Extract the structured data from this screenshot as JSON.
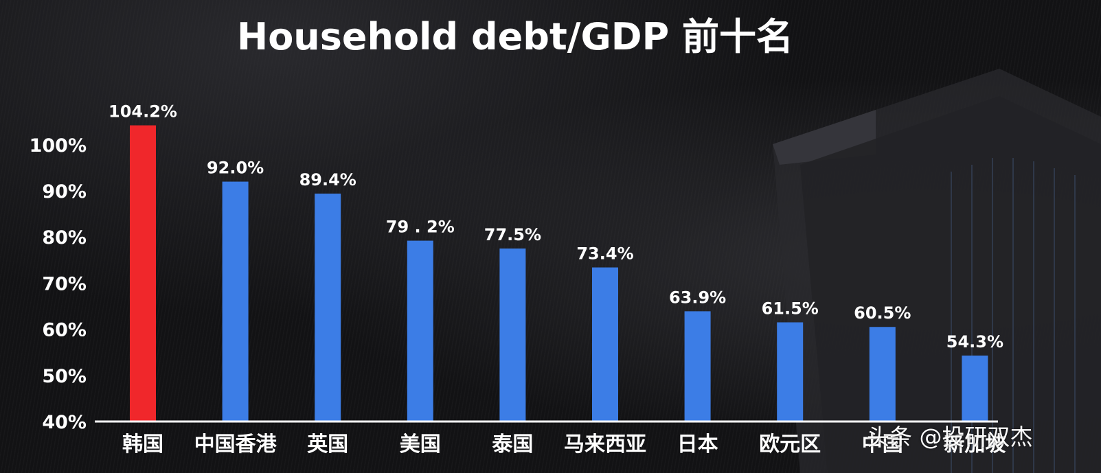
{
  "chart_data": {
    "type": "bar",
    "title": "Household debt/GDP 前十名",
    "categories": [
      "韩国",
      "中国香港",
      "英国",
      "美国",
      "泰国",
      "马来西亚",
      "日本",
      "欧元区",
      "中国",
      "新加坡"
    ],
    "values": [
      104.2,
      92.0,
      89.4,
      79.2,
      77.5,
      73.4,
      63.9,
      61.5,
      60.5,
      54.3
    ],
    "value_labels": [
      "104.2%",
      "92.0%",
      "89.4%",
      "79 . 2%",
      "77.5%",
      "73.4%",
      "63.9%",
      "61.5%",
      "60.5%",
      "54.3%"
    ],
    "yticks": [
      40,
      50,
      60,
      70,
      80,
      90,
      100
    ],
    "ytick_labels": [
      "40%",
      "50%",
      "60%",
      "70%",
      "80%",
      "90%",
      "100%"
    ],
    "ylim": [
      40,
      104.2
    ],
    "grid": false,
    "legend": "none",
    "highlight_index": 0,
    "colors": {
      "highlight": "#f0272b",
      "bar": "#3c7de6",
      "axis": "#ffffff",
      "text": "#ffffff",
      "background": "#121214"
    }
  },
  "watermark": "头条 @投研双杰"
}
